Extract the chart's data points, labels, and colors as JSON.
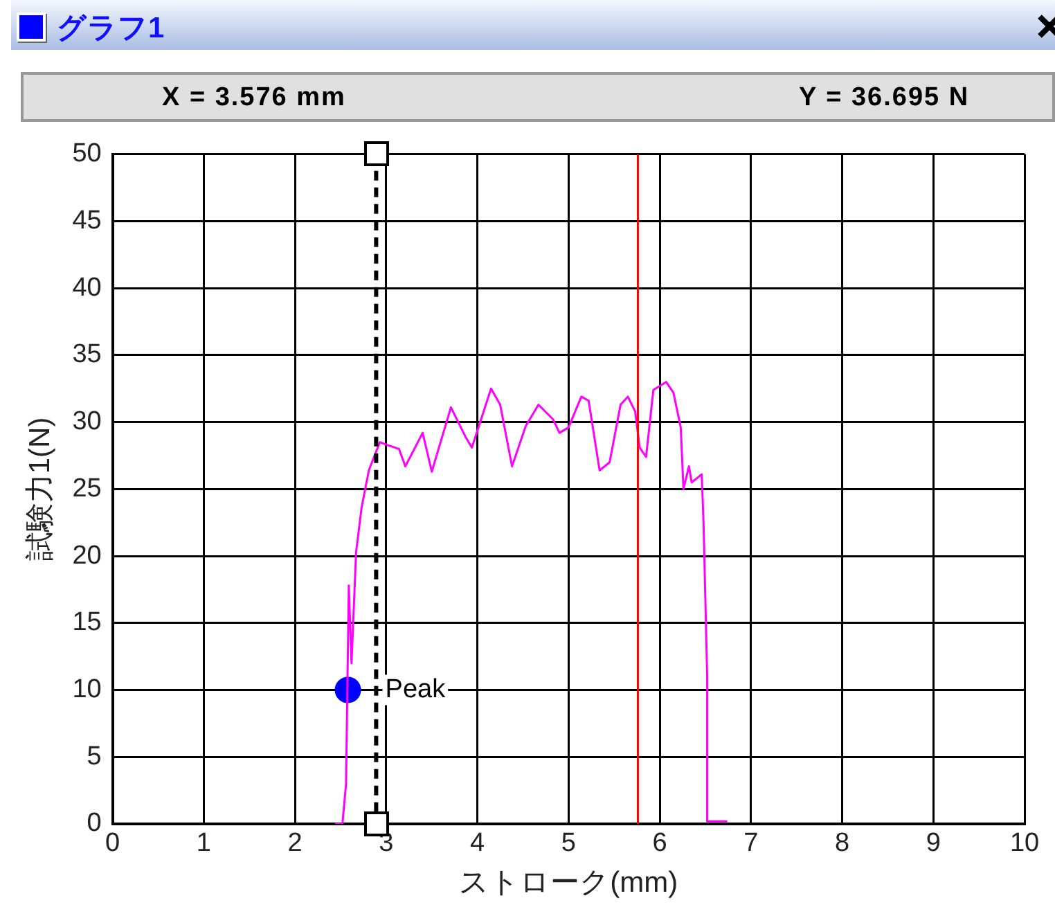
{
  "chart_data": {
    "type": "line",
    "title": "グラフ1",
    "xlabel": "ストローク(mm)",
    "ylabel": "試験力1(N)",
    "annotations": [
      "X = 3.576 mm",
      "Y = 36.695 N",
      {
        "text": "Peak",
        "x": 2.58,
        "y": 10
      }
    ],
    "xlim": [
      0,
      10
    ],
    "ylim": [
      0,
      50
    ],
    "xticks": [
      0,
      1,
      2,
      3,
      4,
      5,
      6,
      7,
      8,
      9,
      10
    ],
    "yticks": [
      0,
      5,
      10,
      15,
      20,
      25,
      30,
      35,
      40,
      45,
      50
    ],
    "grid": true,
    "legend": false,
    "marker": "none",
    "line_style": "solid",
    "ref_lines": [
      {
        "axis": "x",
        "value": 2.89,
        "color": "#000000",
        "line_style": "dashed"
      },
      {
        "axis": "x",
        "value": 5.76,
        "color": "#ff0000",
        "line_style": "solid"
      }
    ],
    "series": [
      {
        "color": "#ff00ff",
        "x": [
          2.44,
          2.52,
          2.56,
          2.59,
          2.62,
          2.67,
          2.73,
          2.81,
          2.93,
          3.01,
          3.14,
          3.21,
          3.4,
          3.5,
          3.71,
          3.87,
          3.94,
          4.15,
          4.25,
          4.38,
          4.53,
          4.67,
          4.83,
          4.9,
          5.0,
          5.14,
          5.22,
          5.34,
          5.45,
          5.57,
          5.65,
          5.73,
          5.78,
          5.85,
          5.93,
          6.07,
          6.15,
          6.23,
          6.26,
          6.32,
          6.35,
          6.46,
          6.48,
          6.52,
          6.52,
          6.74
        ],
        "values": [
          0,
          0,
          3,
          17.8,
          12,
          20.3,
          23.6,
          26.4,
          28.5,
          28.3,
          28.0,
          26.7,
          29.2,
          26.3,
          31.1,
          28.9,
          28.1,
          32.5,
          31.3,
          26.7,
          29.7,
          31.3,
          30.2,
          29.2,
          29.6,
          31.9,
          31.6,
          26.4,
          27.0,
          31.3,
          31.9,
          30.8,
          28.1,
          27.4,
          32.4,
          33.0,
          32.2,
          29.6,
          25.0,
          26.7,
          25.5,
          26.1,
          22.5,
          11.0,
          0.2,
          0.2
        ]
      },
      {
        "type": "scatter",
        "color": "#0000ff",
        "marker": "circle",
        "x": [
          2.58
        ],
        "values": [
          10
        ]
      }
    ]
  }
}
